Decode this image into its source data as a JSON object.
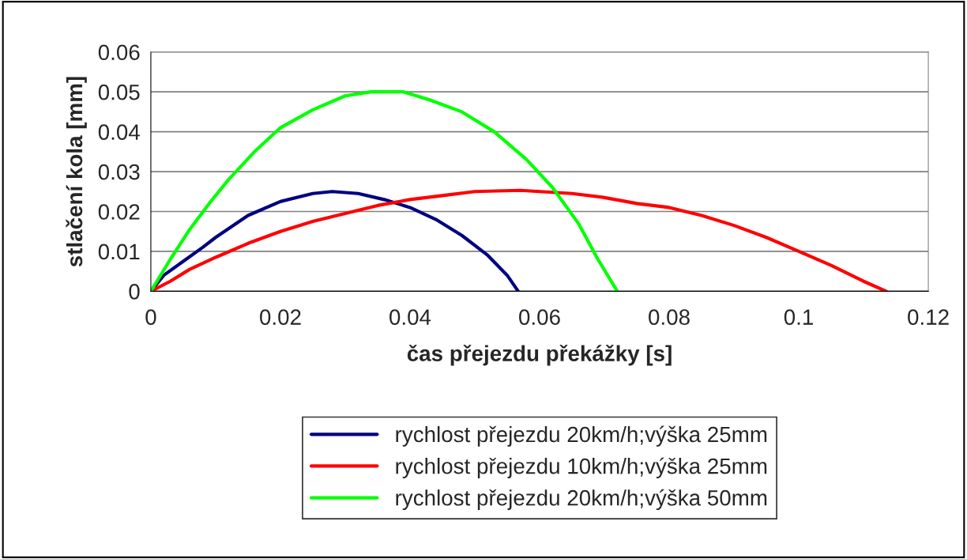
{
  "chart_data": {
    "type": "line",
    "xlabel": "čas přejezdu překážky [s]",
    "ylabel": "stlačení kola [mm]",
    "xlim": [
      0,
      0.12
    ],
    "xticks": [
      0,
      0.02,
      0.04,
      0.06,
      0.08,
      0.1,
      0.12
    ],
    "ylim": [
      0,
      0.06
    ],
    "yticks": [
      0,
      0.01,
      0.02,
      0.03,
      0.04,
      0.05,
      0.06
    ],
    "grid": "y",
    "legend": "bottom",
    "marker": "none",
    "line_style": "solid",
    "series": [
      {
        "name": "rychlost přejezdu 20km/h;výška 25mm",
        "color": "#000080",
        "x": [
          0,
          0.002,
          0.005,
          0.008,
          0.01,
          0.015,
          0.02,
          0.025,
          0.028,
          0.032,
          0.036,
          0.04,
          0.044,
          0.048,
          0.052,
          0.055,
          0.0567
        ],
        "values": [
          0,
          0.004,
          0.0075,
          0.011,
          0.0135,
          0.019,
          0.0225,
          0.0245,
          0.025,
          0.0245,
          0.023,
          0.021,
          0.018,
          0.014,
          0.009,
          0.004,
          0
        ]
      },
      {
        "name": "rychlost přejezdu 10km/h;výška 25mm",
        "color": "#ff0000",
        "x": [
          0,
          0.003,
          0.006,
          0.01,
          0.015,
          0.02,
          0.025,
          0.03,
          0.035,
          0.04,
          0.045,
          0.05,
          0.057,
          0.065,
          0.07,
          0.075,
          0.08,
          0.085,
          0.09,
          0.095,
          0.1,
          0.105,
          0.11,
          0.1135
        ],
        "values": [
          0,
          0.0025,
          0.0055,
          0.0085,
          0.012,
          0.015,
          0.0175,
          0.0195,
          0.0215,
          0.023,
          0.024,
          0.025,
          0.0253,
          0.0245,
          0.0235,
          0.022,
          0.021,
          0.019,
          0.0165,
          0.0135,
          0.01,
          0.0065,
          0.0025,
          0
        ]
      },
      {
        "name": "rychlost přejezdu 20km/h;výška 50mm",
        "color": "#00ff00",
        "x": [
          0,
          0.003,
          0.006,
          0.009,
          0.012,
          0.016,
          0.02,
          0.025,
          0.03,
          0.034,
          0.039,
          0.043,
          0.048,
          0.053,
          0.058,
          0.062,
          0.066,
          0.069,
          0.072
        ],
        "values": [
          0,
          0.008,
          0.0155,
          0.022,
          0.028,
          0.035,
          0.041,
          0.0455,
          0.049,
          0.05,
          0.05,
          0.048,
          0.045,
          0.04,
          0.033,
          0.026,
          0.017,
          0.008,
          0
        ]
      }
    ]
  }
}
